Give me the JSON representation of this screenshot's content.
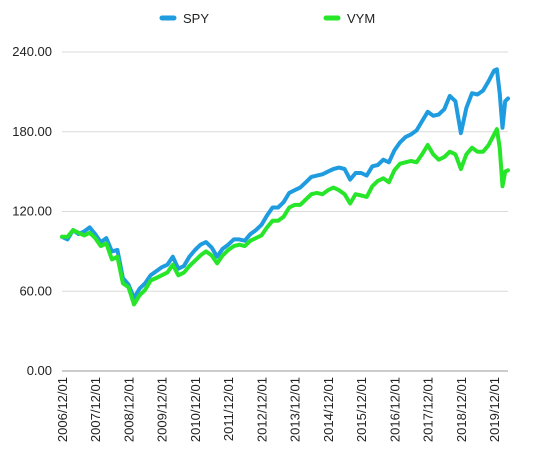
{
  "chart_data": {
    "type": "line",
    "title": "",
    "xlabel": "",
    "ylabel": "",
    "ylim": [
      0,
      240
    ],
    "y_ticks": [
      "0.00",
      "60.00",
      "120.00",
      "180.00",
      "240.00"
    ],
    "x_ticks": [
      "2006/12/01",
      "2007/12/01",
      "2008/12/01",
      "2009/12/01",
      "2010/12/01",
      "2011/12/01",
      "2012/12/01",
      "2013/12/01",
      "2014/12/01",
      "2015/12/01",
      "2016/12/01",
      "2017/12/01",
      "2018/12/01",
      "2019/12/01"
    ],
    "grid": "horizontal",
    "legend_position": "top-center",
    "series": [
      {
        "name": "SPY",
        "color": "#1f9be0",
        "points": [
          [
            "2006/12/01",
            101
          ],
          [
            "2007/02/01",
            99
          ],
          [
            "2007/04/01",
            106
          ],
          [
            "2007/06/01",
            103
          ],
          [
            "2007/08/01",
            105
          ],
          [
            "2007/10/01",
            108
          ],
          [
            "2007/12/01",
            103
          ],
          [
            "2008/02/01",
            97
          ],
          [
            "2008/04/01",
            100
          ],
          [
            "2008/06/01",
            90
          ],
          [
            "2008/08/01",
            91
          ],
          [
            "2008/10/01",
            70
          ],
          [
            "2008/12/01",
            65
          ],
          [
            "2009/02/01",
            55
          ],
          [
            "2009/04/01",
            62
          ],
          [
            "2009/06/01",
            66
          ],
          [
            "2009/08/01",
            72
          ],
          [
            "2009/10/01",
            75
          ],
          [
            "2009/12/01",
            78
          ],
          [
            "2010/02/01",
            80
          ],
          [
            "2010/04/01",
            86
          ],
          [
            "2010/06/01",
            77
          ],
          [
            "2010/08/01",
            79
          ],
          [
            "2010/10/01",
            86
          ],
          [
            "2010/12/01",
            91
          ],
          [
            "2011/02/01",
            95
          ],
          [
            "2011/04/01",
            97
          ],
          [
            "2011/06/01",
            93
          ],
          [
            "2011/08/01",
            86
          ],
          [
            "2011/10/01",
            92
          ],
          [
            "2011/12/01",
            95
          ],
          [
            "2012/02/01",
            99
          ],
          [
            "2012/04/01",
            99
          ],
          [
            "2012/06/01",
            98
          ],
          [
            "2012/08/01",
            103
          ],
          [
            "2012/10/01",
            106
          ],
          [
            "2012/12/01",
            110
          ],
          [
            "2013/02/01",
            117
          ],
          [
            "2013/04/01",
            123
          ],
          [
            "2013/06/01",
            123
          ],
          [
            "2013/08/01",
            127
          ],
          [
            "2013/10/01",
            134
          ],
          [
            "2013/12/01",
            136
          ],
          [
            "2014/02/01",
            138
          ],
          [
            "2014/04/01",
            142
          ],
          [
            "2014/06/01",
            146
          ],
          [
            "2014/08/01",
            147
          ],
          [
            "2014/10/01",
            148
          ],
          [
            "2014/12/01",
            150
          ],
          [
            "2015/02/01",
            152
          ],
          [
            "2015/04/01",
            153
          ],
          [
            "2015/06/01",
            152
          ],
          [
            "2015/08/01",
            144
          ],
          [
            "2015/10/01",
            149
          ],
          [
            "2015/12/01",
            149
          ],
          [
            "2016/02/01",
            147
          ],
          [
            "2016/04/01",
            154
          ],
          [
            "2016/06/01",
            155
          ],
          [
            "2016/08/01",
            159
          ],
          [
            "2016/10/01",
            157
          ],
          [
            "2016/12/01",
            166
          ],
          [
            "2017/02/01",
            172
          ],
          [
            "2017/04/01",
            176
          ],
          [
            "2017/06/01",
            178
          ],
          [
            "2017/08/01",
            181
          ],
          [
            "2017/10/01",
            188
          ],
          [
            "2017/12/01",
            195
          ],
          [
            "2018/02/01",
            192
          ],
          [
            "2018/04/01",
            193
          ],
          [
            "2018/06/01",
            197
          ],
          [
            "2018/08/01",
            207
          ],
          [
            "2018/10/01",
            203
          ],
          [
            "2018/12/01",
            179
          ],
          [
            "2019/02/01",
            198
          ],
          [
            "2019/04/01",
            209
          ],
          [
            "2019/06/01",
            208
          ],
          [
            "2019/08/01",
            211
          ],
          [
            "2019/10/01",
            218
          ],
          [
            "2019/12/01",
            226
          ],
          [
            "2020/01/01",
            227
          ],
          [
            "2020/02/01",
            209
          ],
          [
            "2020/03/01",
            183
          ],
          [
            "2020/04/01",
            203
          ],
          [
            "2020/05/01",
            205
          ]
        ]
      },
      {
        "name": "VYM",
        "color": "#27e62a",
        "points": [
          [
            "2006/12/01",
            101
          ],
          [
            "2007/02/01",
            101
          ],
          [
            "2007/04/01",
            106
          ],
          [
            "2007/06/01",
            104
          ],
          [
            "2007/08/01",
            102
          ],
          [
            "2007/10/01",
            104
          ],
          [
            "2007/12/01",
            100
          ],
          [
            "2008/02/01",
            94
          ],
          [
            "2008/04/01",
            96
          ],
          [
            "2008/06/01",
            84
          ],
          [
            "2008/08/01",
            86
          ],
          [
            "2008/10/01",
            66
          ],
          [
            "2008/12/01",
            63
          ],
          [
            "2009/02/01",
            50
          ],
          [
            "2009/04/01",
            57
          ],
          [
            "2009/06/01",
            61
          ],
          [
            "2009/08/01",
            68
          ],
          [
            "2009/10/01",
            70
          ],
          [
            "2009/12/01",
            72
          ],
          [
            "2010/02/01",
            74
          ],
          [
            "2010/04/01",
            80
          ],
          [
            "2010/06/01",
            72
          ],
          [
            "2010/08/01",
            74
          ],
          [
            "2010/10/01",
            79
          ],
          [
            "2010/12/01",
            83
          ],
          [
            "2011/02/01",
            87
          ],
          [
            "2011/04/01",
            90
          ],
          [
            "2011/06/01",
            87
          ],
          [
            "2011/08/01",
            81
          ],
          [
            "2011/10/01",
            87
          ],
          [
            "2011/12/01",
            91
          ],
          [
            "2012/02/01",
            94
          ],
          [
            "2012/04/01",
            95
          ],
          [
            "2012/06/01",
            94
          ],
          [
            "2012/08/01",
            98
          ],
          [
            "2012/10/01",
            100
          ],
          [
            "2012/12/01",
            102
          ],
          [
            "2013/02/01",
            108
          ],
          [
            "2013/04/01",
            113
          ],
          [
            "2013/06/01",
            113
          ],
          [
            "2013/08/01",
            116
          ],
          [
            "2013/10/01",
            123
          ],
          [
            "2013/12/01",
            125
          ],
          [
            "2014/02/01",
            125
          ],
          [
            "2014/04/01",
            129
          ],
          [
            "2014/06/01",
            133
          ],
          [
            "2014/08/01",
            134
          ],
          [
            "2014/10/01",
            133
          ],
          [
            "2014/12/01",
            136
          ],
          [
            "2015/02/01",
            138
          ],
          [
            "2015/04/01",
            136
          ],
          [
            "2015/06/01",
            133
          ],
          [
            "2015/08/01",
            126
          ],
          [
            "2015/10/01",
            133
          ],
          [
            "2015/12/01",
            132
          ],
          [
            "2016/02/01",
            131
          ],
          [
            "2016/04/01",
            139
          ],
          [
            "2016/06/01",
            143
          ],
          [
            "2016/08/01",
            145
          ],
          [
            "2016/10/01",
            142
          ],
          [
            "2016/12/01",
            151
          ],
          [
            "2017/02/01",
            156
          ],
          [
            "2017/04/01",
            157
          ],
          [
            "2017/06/01",
            158
          ],
          [
            "2017/08/01",
            157
          ],
          [
            "2017/10/01",
            163
          ],
          [
            "2017/12/01",
            170
          ],
          [
            "2018/02/01",
            163
          ],
          [
            "2018/04/01",
            159
          ],
          [
            "2018/06/01",
            161
          ],
          [
            "2018/08/01",
            165
          ],
          [
            "2018/10/01",
            163
          ],
          [
            "2018/12/01",
            152
          ],
          [
            "2019/02/01",
            163
          ],
          [
            "2019/04/01",
            168
          ],
          [
            "2019/06/01",
            165
          ],
          [
            "2019/08/01",
            165
          ],
          [
            "2019/10/01",
            170
          ],
          [
            "2019/12/01",
            178
          ],
          [
            "2020/01/01",
            182
          ],
          [
            "2020/02/01",
            168
          ],
          [
            "2020/03/01",
            139
          ],
          [
            "2020/04/01",
            150
          ],
          [
            "2020/05/01",
            151
          ]
        ]
      }
    ]
  }
}
